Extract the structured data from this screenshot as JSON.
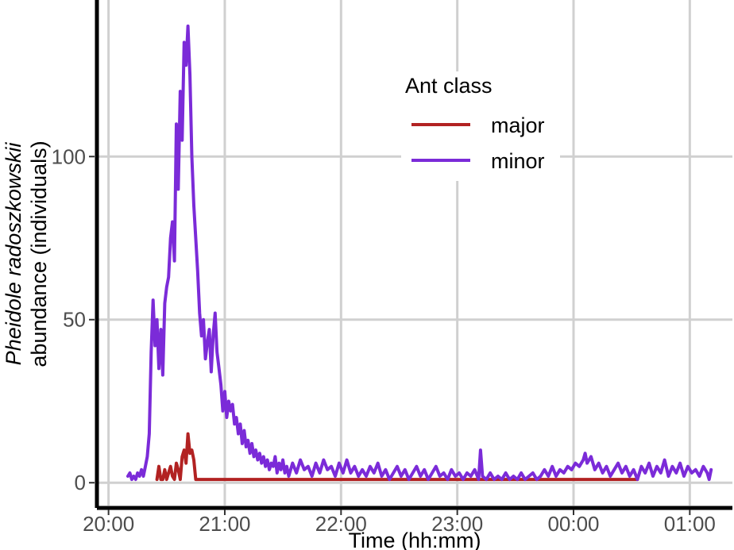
{
  "chart_data": {
    "type": "line",
    "title": "",
    "xlabel": "Time (hh:mm)",
    "ylabel_line1": "Pheidole radoszkowskii",
    "ylabel_line2": "abundance (individuals)",
    "x_ticks": [
      "20:00",
      "21:00",
      "22:00",
      "23:00",
      "00:00",
      "01:00"
    ],
    "x_tick_minutes": [
      0,
      60,
      120,
      180,
      240,
      300
    ],
    "xlim_minutes": [
      -6,
      322
    ],
    "x_origin": "20:00",
    "y_ticks": [
      0,
      50,
      100
    ],
    "ylim": [
      -7,
      148
    ],
    "grid": true,
    "legend": {
      "title": "Ant class",
      "position": "top-right",
      "entries": [
        "major",
        "minor"
      ]
    },
    "series": [
      {
        "name": "major",
        "color": "#B22222",
        "points": [
          [
            "20:25",
            1
          ],
          [
            "20:26",
            5
          ],
          [
            "20:27",
            1
          ],
          [
            "20:28",
            1
          ],
          [
            "20:29",
            4
          ],
          [
            "20:30",
            1
          ],
          [
            "20:31",
            3
          ],
          [
            "20:32",
            5
          ],
          [
            "20:33",
            2
          ],
          [
            "20:34",
            1
          ],
          [
            "20:35",
            6
          ],
          [
            "20:36",
            4
          ],
          [
            "20:37",
            1
          ],
          [
            "20:38",
            8
          ],
          [
            "20:39",
            10
          ],
          [
            "20:40",
            6
          ],
          [
            "20:41",
            15
          ],
          [
            "20:42",
            9
          ],
          [
            "20:43",
            10
          ],
          [
            "20:44",
            7
          ],
          [
            "20:45",
            1
          ],
          [
            "20:46",
            1
          ],
          [
            "21:00",
            1
          ],
          [
            "22:00",
            1
          ],
          [
            "23:00",
            1
          ],
          [
            "00:00",
            1
          ],
          [
            "00:30",
            1
          ],
          [
            "00:33",
            1
          ]
        ]
      },
      {
        "name": "minor",
        "color": "#7B2BD8",
        "points": [
          [
            "20:10",
            2
          ],
          [
            "20:11",
            3
          ],
          [
            "20:12",
            1
          ],
          [
            "20:13",
            2
          ],
          [
            "20:14",
            1
          ],
          [
            "20:15",
            3
          ],
          [
            "20:16",
            2
          ],
          [
            "20:17",
            4
          ],
          [
            "20:18",
            2
          ],
          [
            "20:19",
            5
          ],
          [
            "20:20",
            8
          ],
          [
            "20:21",
            15
          ],
          [
            "20:22",
            40
          ],
          [
            "20:23",
            56
          ],
          [
            "20:24",
            42
          ],
          [
            "20:25",
            50
          ],
          [
            "20:26",
            35
          ],
          [
            "20:27",
            47
          ],
          [
            "20:28",
            33
          ],
          [
            "20:29",
            55
          ],
          [
            "20:30",
            60
          ],
          [
            "20:31",
            63
          ],
          [
            "20:32",
            75
          ],
          [
            "20:33",
            80
          ],
          [
            "20:34",
            68
          ],
          [
            "20:35",
            110
          ],
          [
            "20:36",
            90
          ],
          [
            "20:37",
            120
          ],
          [
            "20:38",
            105
          ],
          [
            "20:39",
            135
          ],
          [
            "20:40",
            128
          ],
          [
            "20:41",
            140
          ],
          [
            "20:42",
            125
          ],
          [
            "20:43",
            100
          ],
          [
            "20:44",
            85
          ],
          [
            "20:45",
            75
          ],
          [
            "20:46",
            65
          ],
          [
            "20:47",
            52
          ],
          [
            "20:48",
            45
          ],
          [
            "20:49",
            50
          ],
          [
            "20:50",
            38
          ],
          [
            "20:51",
            43
          ],
          [
            "20:52",
            47
          ],
          [
            "20:53",
            34
          ],
          [
            "20:54",
            45
          ],
          [
            "20:55",
            52
          ],
          [
            "20:56",
            40
          ],
          [
            "20:57",
            35
          ],
          [
            "20:58",
            30
          ],
          [
            "20:59",
            22
          ],
          [
            "21:00",
            28
          ],
          [
            "21:01",
            20
          ],
          [
            "21:02",
            25
          ],
          [
            "21:03",
            22
          ],
          [
            "21:04",
            24
          ],
          [
            "21:05",
            18
          ],
          [
            "21:06",
            20
          ],
          [
            "21:07",
            15
          ],
          [
            "21:08",
            18
          ],
          [
            "21:09",
            12
          ],
          [
            "21:10",
            16
          ],
          [
            "21:11",
            11
          ],
          [
            "21:12",
            13
          ],
          [
            "21:13",
            9
          ],
          [
            "21:14",
            12
          ],
          [
            "21:15",
            8
          ],
          [
            "21:16",
            10
          ],
          [
            "21:17",
            7
          ],
          [
            "21:18",
            9
          ],
          [
            "21:19",
            6
          ],
          [
            "21:20",
            8
          ],
          [
            "21:21",
            5
          ],
          [
            "21:22",
            7
          ],
          [
            "21:23",
            4
          ],
          [
            "21:24",
            6
          ],
          [
            "21:25",
            5
          ],
          [
            "21:26",
            8
          ],
          [
            "21:27",
            3
          ],
          [
            "21:28",
            6
          ],
          [
            "21:29",
            4
          ],
          [
            "21:30",
            7
          ],
          [
            "21:31",
            3
          ],
          [
            "21:32",
            5
          ],
          [
            "21:33",
            2
          ],
          [
            "21:35",
            6
          ],
          [
            "21:37",
            3
          ],
          [
            "21:39",
            7
          ],
          [
            "21:41",
            4
          ],
          [
            "21:43",
            5
          ],
          [
            "21:45",
            2
          ],
          [
            "21:47",
            6
          ],
          [
            "21:49",
            3
          ],
          [
            "21:51",
            7
          ],
          [
            "21:53",
            4
          ],
          [
            "21:55",
            5
          ],
          [
            "21:57",
            2
          ],
          [
            "21:59",
            6
          ],
          [
            "22:01",
            3
          ],
          [
            "22:03",
            7
          ],
          [
            "22:05",
            3
          ],
          [
            "22:07",
            5
          ],
          [
            "22:09",
            2
          ],
          [
            "22:11",
            4
          ],
          [
            "22:13",
            2
          ],
          [
            "22:15",
            5
          ],
          [
            "22:17",
            3
          ],
          [
            "22:19",
            6
          ],
          [
            "22:21",
            2
          ],
          [
            "22:23",
            4
          ],
          [
            "22:25",
            1
          ],
          [
            "22:27",
            3
          ],
          [
            "22:29",
            5
          ],
          [
            "22:31",
            2
          ],
          [
            "22:33",
            4
          ],
          [
            "22:35",
            1
          ],
          [
            "22:37",
            3
          ],
          [
            "22:39",
            5
          ],
          [
            "22:41",
            2
          ],
          [
            "22:43",
            4
          ],
          [
            "22:45",
            1
          ],
          [
            "22:47",
            3
          ],
          [
            "22:49",
            5
          ],
          [
            "22:51",
            2
          ],
          [
            "22:53",
            3
          ],
          [
            "22:55",
            1
          ],
          [
            "22:57",
            4
          ],
          [
            "22:59",
            2
          ],
          [
            "23:01",
            3
          ],
          [
            "23:03",
            1
          ],
          [
            "23:05",
            3
          ],
          [
            "23:07",
            2
          ],
          [
            "23:09",
            4
          ],
          [
            "23:11",
            1
          ],
          [
            "23:12",
            10
          ],
          [
            "23:13",
            2
          ],
          [
            "23:15",
            1
          ],
          [
            "23:17",
            3
          ],
          [
            "23:19",
            1
          ],
          [
            "23:21",
            2
          ],
          [
            "23:23",
            1
          ],
          [
            "23:25",
            3
          ],
          [
            "23:27",
            1
          ],
          [
            "23:29",
            2
          ],
          [
            "23:31",
            1
          ],
          [
            "23:33",
            3
          ],
          [
            "23:35",
            1
          ],
          [
            "23:37",
            2
          ],
          [
            "23:39",
            3
          ],
          [
            "23:41",
            1
          ],
          [
            "23:43",
            2
          ],
          [
            "23:45",
            4
          ],
          [
            "23:47",
            2
          ],
          [
            "23:49",
            5
          ],
          [
            "23:51",
            2
          ],
          [
            "23:53",
            4
          ],
          [
            "23:55",
            3
          ],
          [
            "23:57",
            5
          ],
          [
            "23:59",
            4
          ],
          [
            "00:01",
            6
          ],
          [
            "00:03",
            5
          ],
          [
            "00:05",
            7
          ],
          [
            "00:06",
            9
          ],
          [
            "00:07",
            6
          ],
          [
            "00:09",
            8
          ],
          [
            "00:11",
            4
          ],
          [
            "00:13",
            6
          ],
          [
            "00:15",
            3
          ],
          [
            "00:17",
            5
          ],
          [
            "00:19",
            2
          ],
          [
            "00:21",
            4
          ],
          [
            "00:23",
            6
          ],
          [
            "00:25",
            3
          ],
          [
            "00:27",
            5
          ],
          [
            "00:29",
            2
          ],
          [
            "00:31",
            4
          ],
          [
            "00:33",
            1
          ],
          [
            "00:35",
            5
          ],
          [
            "00:37",
            3
          ],
          [
            "00:39",
            6
          ],
          [
            "00:41",
            2
          ],
          [
            "00:43",
            5
          ],
          [
            "00:45",
            3
          ],
          [
            "00:47",
            7
          ],
          [
            "00:49",
            2
          ],
          [
            "00:51",
            5
          ],
          [
            "00:53",
            3
          ],
          [
            "00:55",
            6
          ],
          [
            "00:57",
            2
          ],
          [
            "00:59",
            5
          ],
          [
            "01:01",
            3
          ],
          [
            "01:03",
            4
          ],
          [
            "01:05",
            2
          ],
          [
            "01:07",
            5
          ],
          [
            "01:09",
            3
          ],
          [
            "01:10",
            1
          ],
          [
            "01:11",
            4
          ]
        ]
      }
    ]
  }
}
